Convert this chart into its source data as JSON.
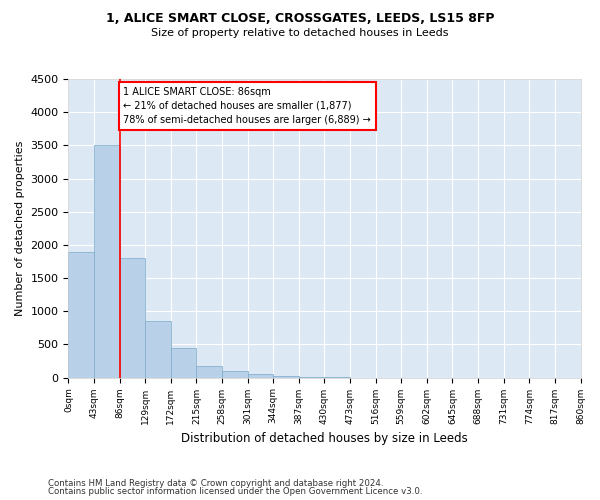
{
  "title1": "1, ALICE SMART CLOSE, CROSSGATES, LEEDS, LS15 8FP",
  "title2": "Size of property relative to detached houses in Leeds",
  "xlabel": "Distribution of detached houses by size in Leeds",
  "ylabel": "Number of detached properties",
  "bar_values": [
    1900,
    3500,
    1800,
    850,
    450,
    175,
    100,
    60,
    30,
    10,
    5,
    0,
    0,
    0,
    0,
    0,
    0,
    0,
    0,
    0
  ],
  "bar_labels": [
    "0sqm",
    "43sqm",
    "86sqm",
    "129sqm",
    "172sqm",
    "215sqm",
    "258sqm",
    "301sqm",
    "344sqm",
    "387sqm",
    "430sqm",
    "473sqm",
    "516sqm",
    "559sqm",
    "602sqm",
    "645sqm",
    "688sqm",
    "731sqm",
    "774sqm",
    "817sqm",
    "860sqm"
  ],
  "bar_color": "#b8d0e8",
  "bar_edge_color": "#7aaac8",
  "vline_x_index": 2,
  "vline_color": "red",
  "annotation_text": "1 ALICE SMART CLOSE: 86sqm\n← 21% of detached houses are smaller (1,877)\n78% of semi-detached houses are larger (6,889) →",
  "annotation_box_color": "red",
  "ylim": [
    0,
    4500
  ],
  "yticks": [
    0,
    500,
    1000,
    1500,
    2000,
    2500,
    3000,
    3500,
    4000,
    4500
  ],
  "footer1": "Contains HM Land Registry data © Crown copyright and database right 2024.",
  "footer2": "Contains public sector information licensed under the Open Government Licence v3.0.",
  "background_color": "#dde8f5",
  "grid_color": "white"
}
